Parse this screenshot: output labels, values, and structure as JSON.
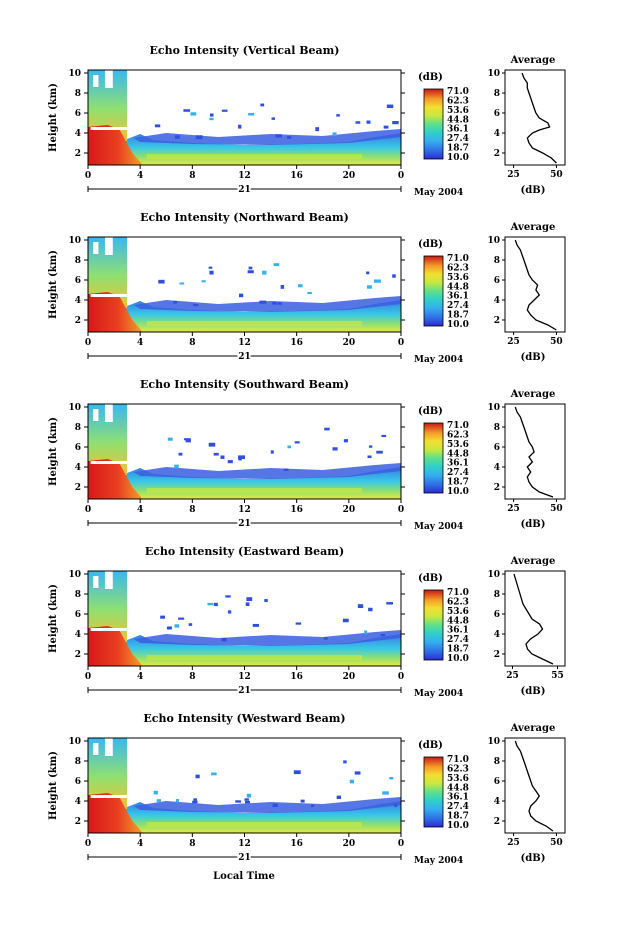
{
  "chart_data": [
    {
      "type": "heatmap",
      "title": "Echo Intensity (Vertical Beam)",
      "ylabel": "Height (km)",
      "x_ticks": [
        "0",
        "4",
        "8",
        "12",
        "16",
        "20",
        "0"
      ],
      "xlim": [
        0,
        24
      ],
      "y_ticks": [
        "2",
        "4",
        "6",
        "8",
        "10"
      ],
      "ylim": [
        0.8,
        10.3
      ],
      "date_mark": "21",
      "date_label": "May 2004",
      "colorbar": {
        "unit": "(dB)",
        "levels": [
          "71.0",
          "62.3",
          "53.6",
          "44.8",
          "36.1",
          "27.4",
          "18.7",
          "10.0"
        ]
      },
      "profile": {
        "title": "Average",
        "xlabel": "(dB)",
        "x_ticks": [
          "25",
          "50"
        ],
        "xlim": [
          20,
          55
        ],
        "y_ticks": [
          "2",
          "4",
          "6",
          "8",
          "10"
        ],
        "ylim": [
          0.8,
          10.3
        ],
        "height": [
          1.0,
          1.5,
          2.0,
          2.5,
          3.0,
          3.5,
          4.0,
          4.3,
          4.6,
          5.0,
          5.5,
          6.0,
          6.5,
          7.0,
          7.5,
          8.0,
          8.5,
          9.0,
          9.5,
          10.0
        ],
        "db": [
          50,
          47,
          42,
          36,
          34,
          33,
          36,
          40,
          46,
          45,
          40,
          38,
          37,
          36,
          35,
          34,
          33,
          33,
          31,
          30
        ]
      }
    },
    {
      "type": "heatmap",
      "title": "Echo Intensity (Northward Beam)",
      "ylabel": "Height (km)",
      "x_ticks": [
        "0",
        "4",
        "8",
        "12",
        "16",
        "20",
        "0"
      ],
      "xlim": [
        0,
        24
      ],
      "y_ticks": [
        "2",
        "4",
        "6",
        "8",
        "10"
      ],
      "ylim": [
        0.8,
        10.3
      ],
      "date_mark": "21",
      "date_label": "May 2004",
      "colorbar": {
        "unit": "(dB)",
        "levels": [
          "71.0",
          "62.3",
          "53.6",
          "44.8",
          "36.1",
          "27.4",
          "18.7",
          "10.0"
        ]
      },
      "profile": {
        "title": "Average",
        "xlabel": "(dB)",
        "x_ticks": [
          "25",
          "50"
        ],
        "xlim": [
          20,
          55
        ],
        "y_ticks": [
          "2",
          "4",
          "6",
          "8",
          "10"
        ],
        "ylim": [
          0.8,
          10.3
        ],
        "height": [
          1.0,
          1.5,
          2.0,
          2.5,
          3.0,
          3.5,
          4.0,
          4.5,
          5.0,
          5.5,
          6.0,
          6.5,
          7.0,
          7.5,
          8.0,
          8.5,
          9.0,
          9.5,
          10.0
        ],
        "db": [
          50,
          45,
          38,
          35,
          33,
          34,
          37,
          40,
          38,
          39,
          36,
          34,
          33,
          32,
          31,
          30,
          29,
          27,
          26
        ]
      }
    },
    {
      "type": "heatmap",
      "title": "Echo Intensity (Southward Beam)",
      "ylabel": "Height (km)",
      "x_ticks": [
        "0",
        "4",
        "8",
        "12",
        "16",
        "20",
        "0"
      ],
      "xlim": [
        0,
        24
      ],
      "y_ticks": [
        "2",
        "4",
        "6",
        "8",
        "10"
      ],
      "ylim": [
        0.8,
        10.3
      ],
      "date_mark": "21",
      "date_label": "May 2004",
      "colorbar": {
        "unit": "(dB)",
        "levels": [
          "71.0",
          "62.3",
          "53.6",
          "44.8",
          "36.1",
          "27.4",
          "18.7",
          "10.0"
        ]
      },
      "profile": {
        "title": "Average",
        "xlabel": "(dB)",
        "x_ticks": [
          "25",
          "50"
        ],
        "xlim": [
          20,
          55
        ],
        "y_ticks": [
          "2",
          "4",
          "6",
          "8",
          "10"
        ],
        "ylim": [
          0.8,
          10.3
        ],
        "height": [
          1.0,
          1.5,
          2.0,
          2.5,
          3.0,
          3.5,
          4.0,
          4.5,
          5.0,
          5.5,
          6.0,
          6.5,
          7.0,
          7.5,
          8.0,
          8.5,
          9.0,
          9.5,
          10.0
        ],
        "db": [
          48,
          40,
          36,
          34,
          33,
          35,
          33,
          36,
          34,
          37,
          36,
          34,
          33,
          32,
          31,
          30,
          29,
          27,
          26
        ]
      }
    },
    {
      "type": "heatmap",
      "title": "Echo Intensity (Eastward Beam)",
      "ylabel": "Height (km)",
      "x_ticks": [
        "0",
        "4",
        "8",
        "12",
        "16",
        "20",
        "0"
      ],
      "xlim": [
        0,
        24
      ],
      "y_ticks": [
        "2",
        "4",
        "6",
        "8",
        "10"
      ],
      "ylim": [
        0.8,
        10.3
      ],
      "date_mark": "21",
      "date_label": "May 2004",
      "colorbar": {
        "unit": "(dB)",
        "levels": [
          "71.0",
          "62.3",
          "53.6",
          "44.8",
          "36.1",
          "27.4",
          "18.7",
          "10.0"
        ]
      },
      "profile": {
        "title": "Average",
        "xlabel": "(dB)",
        "x_ticks": [
          "25",
          "55"
        ],
        "xlim": [
          20,
          60
        ],
        "y_ticks": [
          "2",
          "4",
          "6",
          "8",
          "10"
        ],
        "ylim": [
          0.8,
          10.3
        ],
        "height": [
          1.0,
          1.5,
          2.0,
          2.5,
          3.0,
          3.5,
          4.0,
          4.5,
          5.0,
          5.5,
          6.0,
          6.5,
          7.0,
          7.5,
          8.0,
          8.5,
          9.0,
          9.5,
          10.0
        ],
        "db": [
          52,
          45,
          38,
          35,
          34,
          37,
          42,
          45,
          43,
          38,
          36,
          34,
          32,
          31,
          30,
          29,
          28,
          27,
          26
        ]
      }
    },
    {
      "type": "heatmap",
      "title": "Echo Intensity (Westward Beam)",
      "ylabel": "Height (km)",
      "x_ticks": [
        "0",
        "4",
        "8",
        "12",
        "16",
        "20",
        "0"
      ],
      "xlim": [
        0,
        24
      ],
      "y_ticks": [
        "2",
        "4",
        "6",
        "8",
        "10"
      ],
      "ylim": [
        0.8,
        10.3
      ],
      "date_mark": "21",
      "date_label": "May 2004",
      "colorbar": {
        "unit": "(dB)",
        "levels": [
          "71.0",
          "62.3",
          "53.6",
          "44.8",
          "36.1",
          "27.4",
          "18.7",
          "10.0"
        ]
      },
      "profile": {
        "title": "Average",
        "xlabel": "(dB)",
        "x_ticks": [
          "25",
          "50"
        ],
        "xlim": [
          20,
          55
        ],
        "y_ticks": [
          "2",
          "4",
          "6",
          "8",
          "10"
        ],
        "ylim": [
          0.8,
          10.3
        ],
        "height": [
          1.0,
          1.5,
          2.0,
          2.5,
          3.0,
          3.5,
          4.0,
          4.5,
          5.0,
          5.5,
          6.0,
          6.5,
          7.0,
          7.5,
          8.0,
          8.5,
          9.0,
          9.5,
          10.0
        ],
        "db": [
          48,
          44,
          38,
          35,
          34,
          35,
          38,
          40,
          38,
          36,
          35,
          34,
          33,
          32,
          31,
          30,
          29,
          27,
          26
        ]
      }
    }
  ],
  "x_axis_label": "Local Time",
  "colormap": [
    "#2b2bd0",
    "#2f6fe8",
    "#35b0f0",
    "#2ed0c8",
    "#5fe08a",
    "#c8e840",
    "#f2e030",
    "#f59a28",
    "#e84020",
    "#c81818"
  ]
}
